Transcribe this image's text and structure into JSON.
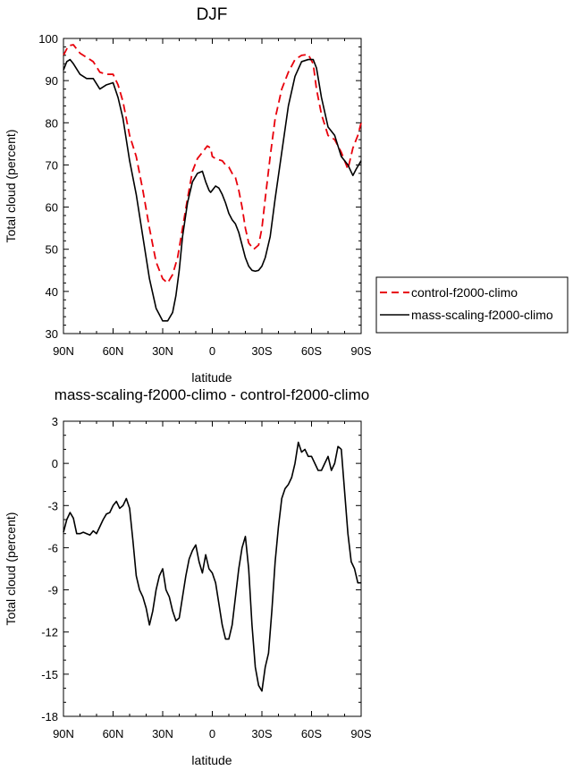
{
  "chart_data": [
    {
      "type": "line",
      "title": "DJF",
      "xlabel": "latitude",
      "ylabel": "Total cloud (percent)",
      "xlim": [
        90,
        -90
      ],
      "ylim": [
        30,
        100
      ],
      "x_ticks": [
        90,
        60,
        30,
        0,
        -30,
        -60,
        -90
      ],
      "x_tick_labels": [
        "90N",
        "60N",
        "30N",
        "0",
        "30S",
        "60S",
        "90S"
      ],
      "y_ticks": [
        30,
        40,
        50,
        60,
        70,
        80,
        90,
        100
      ],
      "y_tick_labels": [
        "30",
        "40",
        "50",
        "60",
        "70",
        "80",
        "90",
        "100"
      ],
      "grid": false,
      "legend_position": "right",
      "series": [
        {
          "name": "control-f2000-climo",
          "color": "#e8000b",
          "style": "dashed",
          "x": [
            90,
            87,
            84,
            80,
            76,
            72,
            68,
            64,
            60,
            57,
            54,
            50,
            46,
            42,
            38,
            34,
            30,
            27,
            24,
            21,
            18,
            15,
            12,
            9,
            6,
            3,
            1,
            0,
            -2,
            -4,
            -6,
            -8,
            -10,
            -12,
            -14,
            -16,
            -18,
            -20,
            -22,
            -25,
            -28,
            -30,
            -32,
            -35,
            -38,
            -42,
            -46,
            -50,
            -54,
            -58,
            -61,
            -63,
            -66,
            -70,
            -74,
            -78,
            -82,
            -85,
            -88,
            -90
          ],
          "y": [
            96,
            98.3,
            98.5,
            96.5,
            95.5,
            94.5,
            92,
            91.5,
            91.5,
            89,
            85,
            77,
            72,
            64,
            55,
            47,
            43,
            42,
            44,
            48,
            55,
            62,
            68.5,
            71.5,
            73,
            74.5,
            74,
            72,
            71.5,
            71.2,
            71,
            70,
            69.5,
            68,
            67,
            64,
            60,
            55,
            51.5,
            50,
            51,
            55,
            62,
            72,
            81,
            88,
            92,
            95,
            96,
            96.2,
            94,
            88,
            82,
            77,
            76,
            73,
            69,
            74,
            77,
            80
          ]
        },
        {
          "name": "mass-scaling-f2000-climo",
          "color": "#000000",
          "style": "solid",
          "x": [
            90,
            88,
            86,
            84,
            80,
            76,
            72,
            68,
            64,
            60,
            57,
            54,
            50,
            46,
            42,
            38,
            34,
            30,
            27,
            24,
            22,
            20,
            18,
            15,
            12,
            9,
            6,
            4,
            2,
            1,
            0,
            -2,
            -4,
            -6,
            -8,
            -10,
            -12,
            -14,
            -16,
            -18,
            -20,
            -22,
            -24,
            -26,
            -28,
            -30,
            -32,
            -35,
            -38,
            -42,
            -46,
            -50,
            -54,
            -58,
            -61,
            -63,
            -66,
            -70,
            -74,
            -78,
            -82,
            -85,
            -87,
            -90
          ],
          "y": [
            92.5,
            94.5,
            95,
            94,
            91.5,
            90.5,
            90.5,
            88,
            89,
            89.5,
            86,
            81,
            71,
            63,
            53,
            43,
            36,
            33,
            33,
            35,
            39,
            45,
            53,
            61,
            66,
            68,
            68.5,
            66,
            64,
            63.5,
            64,
            65,
            64.5,
            63,
            61,
            58.5,
            57,
            56,
            54,
            51,
            48,
            46,
            45,
            44.8,
            45,
            46,
            48,
            53,
            62,
            73,
            84,
            91,
            94.5,
            95,
            95,
            93,
            86,
            79,
            77,
            72,
            70,
            67.5,
            69,
            71
          ]
        }
      ]
    },
    {
      "type": "line",
      "title": "mass-scaling-f2000-climo - control-f2000-climo",
      "xlabel": "latitude",
      "ylabel": "Total cloud (percent)",
      "xlim": [
        90,
        -90
      ],
      "ylim": [
        -18,
        3
      ],
      "x_ticks": [
        90,
        60,
        30,
        0,
        -30,
        -60,
        -90
      ],
      "x_tick_labels": [
        "90N",
        "60N",
        "30N",
        "0",
        "30S",
        "60S",
        "90S"
      ],
      "y_ticks": [
        -18,
        -15,
        -12,
        -9,
        -6,
        -3,
        0,
        3
      ],
      "y_tick_labels": [
        "-18",
        "-15",
        "-12",
        "-9",
        "-6",
        "-3",
        "0",
        "3"
      ],
      "grid": false,
      "series": [
        {
          "color": "#000000",
          "style": "solid",
          "x": [
            90,
            88,
            86,
            84,
            82,
            80,
            78,
            76,
            74,
            72,
            70,
            68,
            66,
            64,
            62,
            60,
            58,
            56,
            54,
            52,
            50,
            48,
            46,
            44,
            42,
            40,
            38,
            36,
            34,
            32,
            30,
            28,
            26,
            24,
            22,
            20,
            18,
            16,
            14,
            12,
            10,
            8,
            6,
            4,
            2,
            0,
            -2,
            -4,
            -6,
            -8,
            -10,
            -12,
            -14,
            -16,
            -18,
            -20,
            -22,
            -24,
            -26,
            -28,
            -30,
            -32,
            -34,
            -36,
            -38,
            -40,
            -42,
            -44,
            -46,
            -48,
            -50,
            -52,
            -54,
            -56,
            -58,
            -60,
            -62,
            -64,
            -66,
            -68,
            -70,
            -72,
            -74,
            -76,
            -78,
            -80,
            -82,
            -84,
            -86,
            -88,
            -90
          ],
          "y": [
            -4.9,
            -4.0,
            -3.5,
            -3.9,
            -5.0,
            -5.0,
            -4.9,
            -5.0,
            -5.1,
            -4.8,
            -5.0,
            -4.5,
            -4.0,
            -3.6,
            -3.5,
            -3.0,
            -2.7,
            -3.2,
            -3.0,
            -2.5,
            -3.2,
            -5.5,
            -8.0,
            -9.0,
            -9.5,
            -10.3,
            -11.5,
            -10.5,
            -9.0,
            -8.0,
            -7.5,
            -9.0,
            -9.5,
            -10.5,
            -11.2,
            -11.0,
            -9.5,
            -8.0,
            -6.8,
            -6.2,
            -5.8,
            -7.0,
            -7.8,
            -6.5,
            -7.5,
            -7.8,
            -8.5,
            -10.0,
            -11.5,
            -12.5,
            -12.5,
            -11.5,
            -9.5,
            -7.5,
            -6.0,
            -5.2,
            -7.5,
            -11.5,
            -14.5,
            -15.8,
            -16.2,
            -14.5,
            -13.5,
            -10.5,
            -7.0,
            -4.5,
            -2.5,
            -1.8,
            -1.5,
            -1.0,
            0.0,
            1.5,
            0.8,
            1.0,
            0.5,
            0.5,
            0.0,
            -0.5,
            -0.5,
            0.0,
            0.5,
            -0.5,
            0.0,
            1.2,
            1.0,
            -2.0,
            -5.0,
            -7.0,
            -7.5,
            -8.5,
            -8.5
          ]
        }
      ]
    }
  ]
}
